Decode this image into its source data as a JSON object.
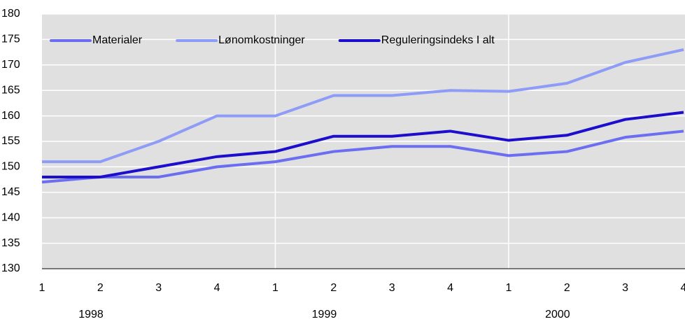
{
  "chart_data": {
    "type": "line",
    "categories": [
      "1",
      "2",
      "3",
      "4",
      "1",
      "2",
      "3",
      "4",
      "1",
      "2",
      "3",
      "4"
    ],
    "years": [
      "1998",
      "1999",
      "2000"
    ],
    "series": [
      {
        "name": "Materialer",
        "color": "#6b6ef0",
        "values": [
          147,
          148,
          148,
          150,
          151,
          153,
          154,
          154,
          152.2,
          153,
          155.8,
          157
        ]
      },
      {
        "name": "Lønomkostninger",
        "color": "#8f9cf7",
        "values": [
          151,
          151,
          155,
          160,
          160,
          164,
          164,
          165,
          164.8,
          166.4,
          170.5,
          173
        ]
      },
      {
        "name": "Reguleringsindeks I alt",
        "color": "#1c0ecc",
        "values": [
          148,
          148,
          150,
          152,
          153,
          156,
          156,
          157,
          155.2,
          156.2,
          159.3,
          160.7
        ]
      }
    ],
    "ylim": [
      130,
      180
    ],
    "yticks": [
      130,
      135,
      140,
      145,
      150,
      155,
      160,
      165,
      170,
      175,
      180
    ],
    "grid": true,
    "legend": "top-left"
  }
}
